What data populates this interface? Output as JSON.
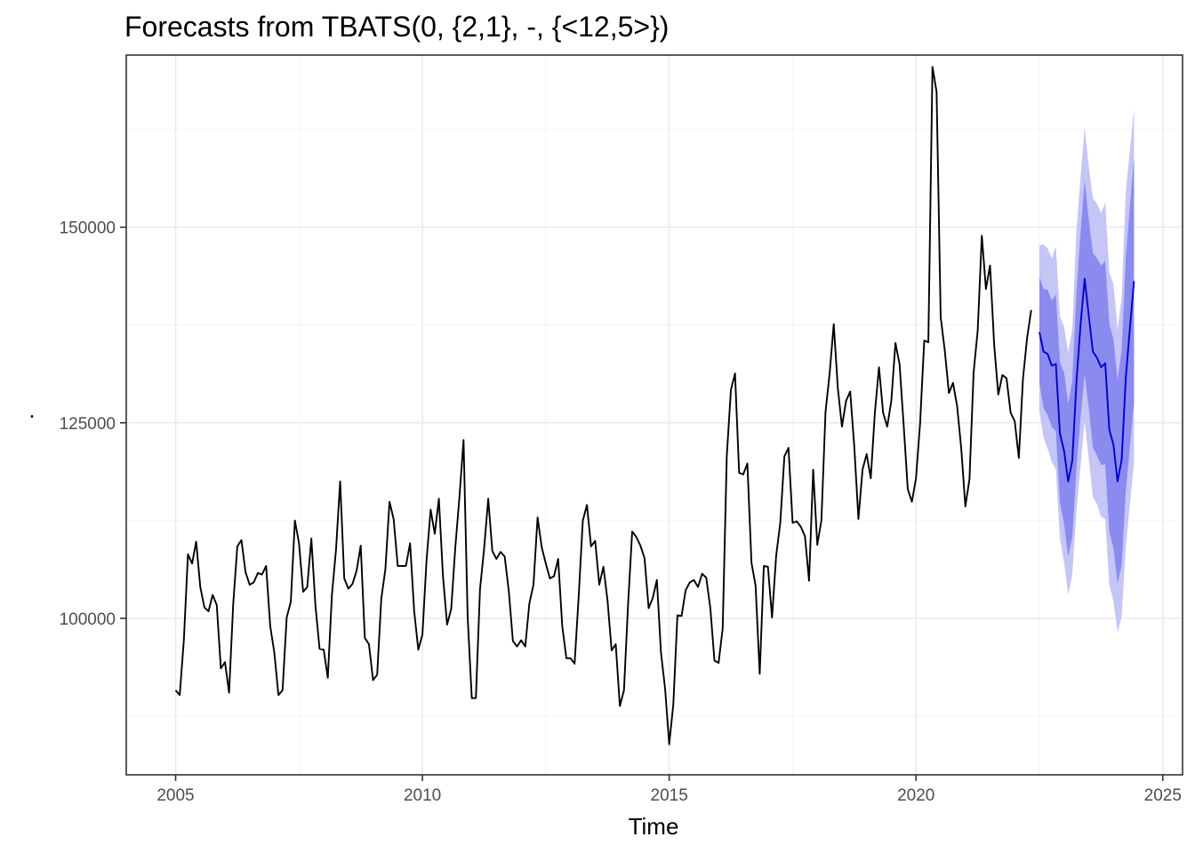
{
  "chart_data": {
    "type": "line",
    "title": "Forecasts from TBATS(0, {2,1}, -, {<12,5>})",
    "xlabel": "Time",
    "ylabel": ".",
    "xlim": [
      2004.0,
      2025.4
    ],
    "ylim": [
      80000,
      172000
    ],
    "x_ticks": [
      2005,
      2010,
      2015,
      2020,
      2025
    ],
    "y_ticks": [
      100000,
      125000,
      150000
    ],
    "x_tick_labels": [
      "2005",
      "2010",
      "2015",
      "2020",
      "2025"
    ],
    "y_tick_labels": [
      "100000",
      "125000",
      "150000"
    ],
    "grid": true,
    "colors": {
      "observed": "#000000",
      "forecast": "#0000cc",
      "band_80": "#8a8aef",
      "band_95": "#c5c5f6",
      "grid": "#ebebeb",
      "panel_border": "#333333"
    },
    "observed": {
      "start": [
        2005,
        1
      ],
      "frequency": 12,
      "values": [
        90800,
        90200,
        97200,
        108200,
        107000,
        109800,
        104000,
        101400,
        100900,
        103000,
        101700,
        93600,
        94400,
        90500,
        101800,
        109200,
        110000,
        105900,
        104300,
        104600,
        105800,
        105600,
        106700,
        99000,
        95600,
        90200,
        90800,
        100100,
        102100,
        112500,
        109600,
        103400,
        104000,
        110200,
        101600,
        96100,
        96000,
        92400,
        103000,
        108800,
        117500,
        105100,
        103800,
        104400,
        106100,
        109300,
        97500,
        96700,
        92100,
        92800,
        102500,
        106300,
        114900,
        112700,
        106700,
        106700,
        106700,
        109600,
        100900,
        96000,
        97900,
        107400,
        113900,
        110800,
        115300,
        105400,
        99200,
        101200,
        109100,
        115500,
        122800,
        100200,
        89800,
        89800,
        103700,
        108900,
        115300,
        108600,
        107600,
        108500,
        107900,
        103500,
        97100,
        96400,
        97200,
        96400,
        101900,
        104300,
        112900,
        109100,
        107000,
        105100,
        105400,
        107600,
        99000,
        94900,
        94900,
        94200,
        102900,
        112500,
        114500,
        109200,
        109900,
        104300,
        106600,
        102300,
        95900,
        96700,
        88800,
        90800,
        101800,
        111100,
        110400,
        109300,
        107700,
        101300,
        102600,
        104900,
        95600,
        91000,
        83900,
        89000,
        100400,
        100300,
        103600,
        104600,
        104900,
        104000,
        105700,
        105200,
        101300,
        94600,
        94300,
        98700,
        120800,
        129200,
        131300,
        118600,
        118400,
        119800,
        107100,
        104200,
        92900,
        106700,
        106600,
        100100,
        108000,
        112200,
        120700,
        121800,
        112200,
        112400,
        111700,
        110500,
        104800,
        119000,
        109400,
        112500,
        126400,
        131300,
        137600,
        129400,
        124500,
        127800,
        129000,
        121900,
        112700,
        119000,
        121000,
        117900,
        126300,
        132100,
        126300,
        124500,
        127800,
        135200,
        132500,
        124700,
        116500,
        114900,
        117900,
        125000,
        135500,
        135300,
        170500,
        167300,
        138500,
        134200,
        128800,
        130100,
        127100,
        121700,
        114300,
        117800,
        131400,
        136800,
        148900,
        142100,
        145100,
        135000,
        128600,
        131100,
        130700,
        126300,
        125200,
        120500,
        130600,
        135800,
        139400
      ]
    },
    "forecast": {
      "start": [
        2022,
        7
      ],
      "frequency": 12,
      "mean": [
        136600,
        134100,
        133800,
        132300,
        132500,
        123600,
        121400,
        117500,
        120200,
        130200,
        137500,
        143400,
        138700,
        134100,
        133300,
        132100,
        132600,
        124100,
        122200,
        117500,
        120300,
        130800,
        137100,
        143100
      ],
      "lo80": [
        130100,
        126900,
        126000,
        124500,
        123900,
        114700,
        112100,
        107900,
        110400,
        119200,
        125700,
        131200,
        126900,
        121900,
        120800,
        119600,
        119700,
        111000,
        109000,
        104500,
        106800,
        116300,
        121900,
        127700
      ],
      "hi80": [
        143600,
        142100,
        142000,
        140600,
        141400,
        132700,
        131400,
        127400,
        130400,
        141600,
        149300,
        156000,
        151000,
        146700,
        146000,
        145100,
        145700,
        137600,
        135700,
        130500,
        134300,
        146100,
        152600,
        158900
      ],
      "lo95": [
        126500,
        123100,
        121700,
        120000,
        119000,
        110200,
        107100,
        103000,
        105600,
        113600,
        119500,
        125200,
        120400,
        115500,
        114600,
        113000,
        112700,
        104300,
        102200,
        98200,
        100200,
        109100,
        114500,
        120000
      ],
      "hi95": [
        147700,
        147800,
        147300,
        146000,
        147600,
        138600,
        137300,
        134000,
        137000,
        149700,
        156400,
        162800,
        157700,
        153700,
        153000,
        151800,
        153100,
        144200,
        142800,
        136900,
        141100,
        154500,
        159800,
        165200
      ]
    }
  }
}
